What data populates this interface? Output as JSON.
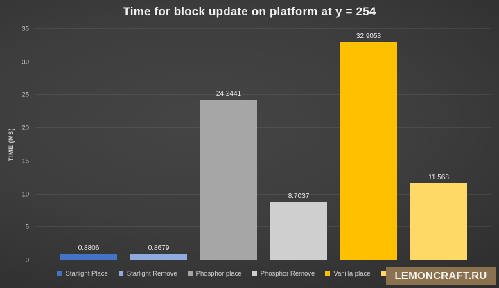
{
  "chart_data": {
    "type": "bar",
    "title": "Time for block update on platform at y = 254",
    "xlabel": "",
    "ylabel": "TIME (MS)",
    "ylim": [
      0,
      35
    ],
    "yticks": [
      0,
      5,
      10,
      15,
      20,
      25,
      30,
      35
    ],
    "grid": true,
    "legend_position": "bottom",
    "categories": [
      "Starlight Place",
      "Starlight Remove",
      "Phosphor place",
      "Phosphor Remove",
      "Vanilla place",
      ""
    ],
    "values": [
      0.8806,
      0.8679,
      24.2441,
      8.7037,
      32.9053,
      11.568
    ],
    "data_labels": [
      "0.8806",
      "0.8679",
      "24.2441",
      "8.7037",
      "32.9053",
      "11.568"
    ],
    "bar_colors": [
      "#4472C4",
      "#8FAADC",
      "#A6A6A6",
      "#CFCFCF",
      "#FFC000",
      "#FFD966"
    ]
  },
  "watermark": {
    "text": "LEMONCRAFT.RU",
    "bg_color": "#8a7150",
    "text_color": "#f7f3ea"
  }
}
